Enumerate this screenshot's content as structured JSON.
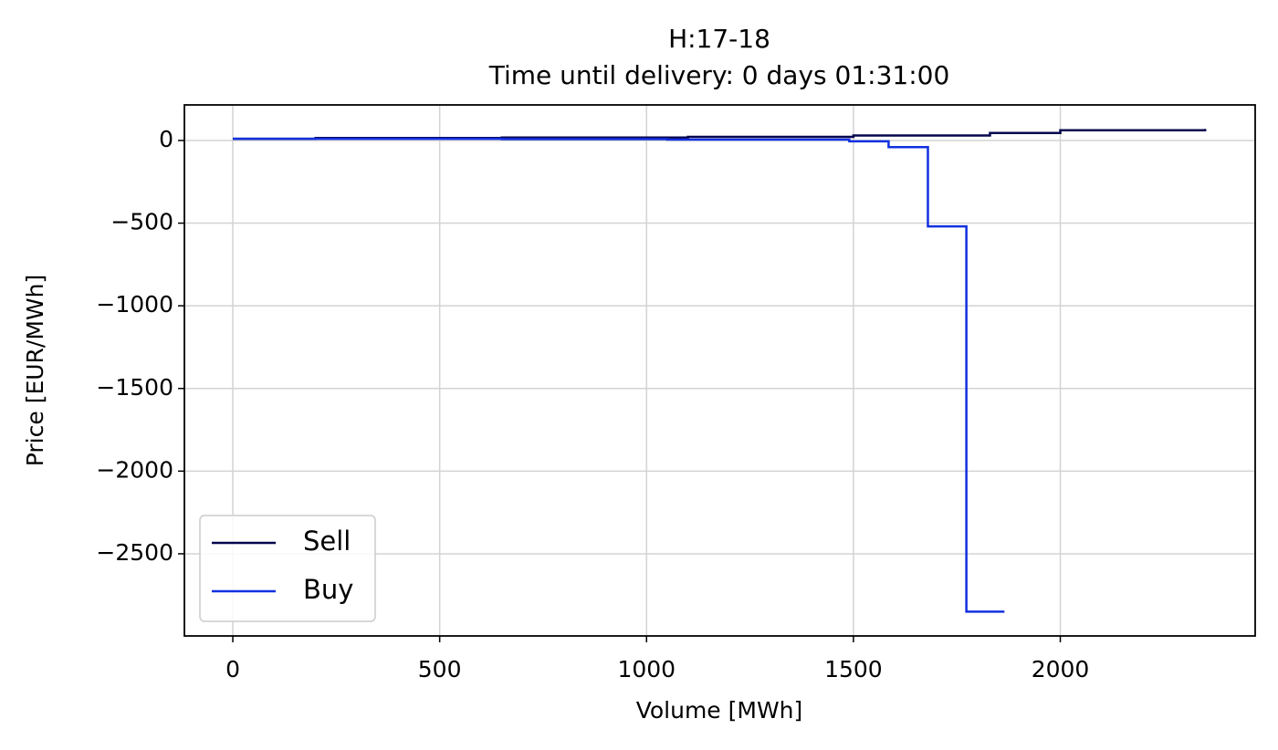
{
  "chart_data": {
    "type": "step",
    "title": "H:17-18",
    "subtitle": "Time until delivery: 0 days 01:31:00",
    "xlabel": "Volume [MWh]",
    "ylabel": "Price [EUR/MWh]",
    "series": [
      {
        "name": "Sell",
        "color": "#06064f",
        "x": [
          0,
          200,
          650,
          1100,
          1500,
          1830,
          2000,
          2350
        ],
        "values": [
          10,
          15,
          18,
          22,
          30,
          45,
          62,
          70
        ]
      },
      {
        "name": "Buy",
        "color": "#1230e0",
        "x": [
          0,
          650,
          1050,
          1490,
          1585,
          1680,
          1773,
          1865
        ],
        "values": [
          10,
          8,
          5,
          -5,
          -40,
          -520,
          -2850,
          -2850
        ]
      }
    ],
    "xlim": [
      -117,
      2471
    ],
    "xticks": [
      0,
      500,
      1000,
      1500,
      2000
    ],
    "ylim": [
      -2997,
      215
    ],
    "yticks": [
      {
        "value": 0,
        "label": "0"
      },
      {
        "value": -500,
        "label": "−500"
      },
      {
        "value": -1000,
        "label": "−1000"
      },
      {
        "value": -1500,
        "label": "−1500"
      },
      {
        "value": -2000,
        "label": "−2000"
      },
      {
        "value": -2500,
        "label": "−2500"
      }
    ],
    "grid": true,
    "legend": "lower left"
  }
}
